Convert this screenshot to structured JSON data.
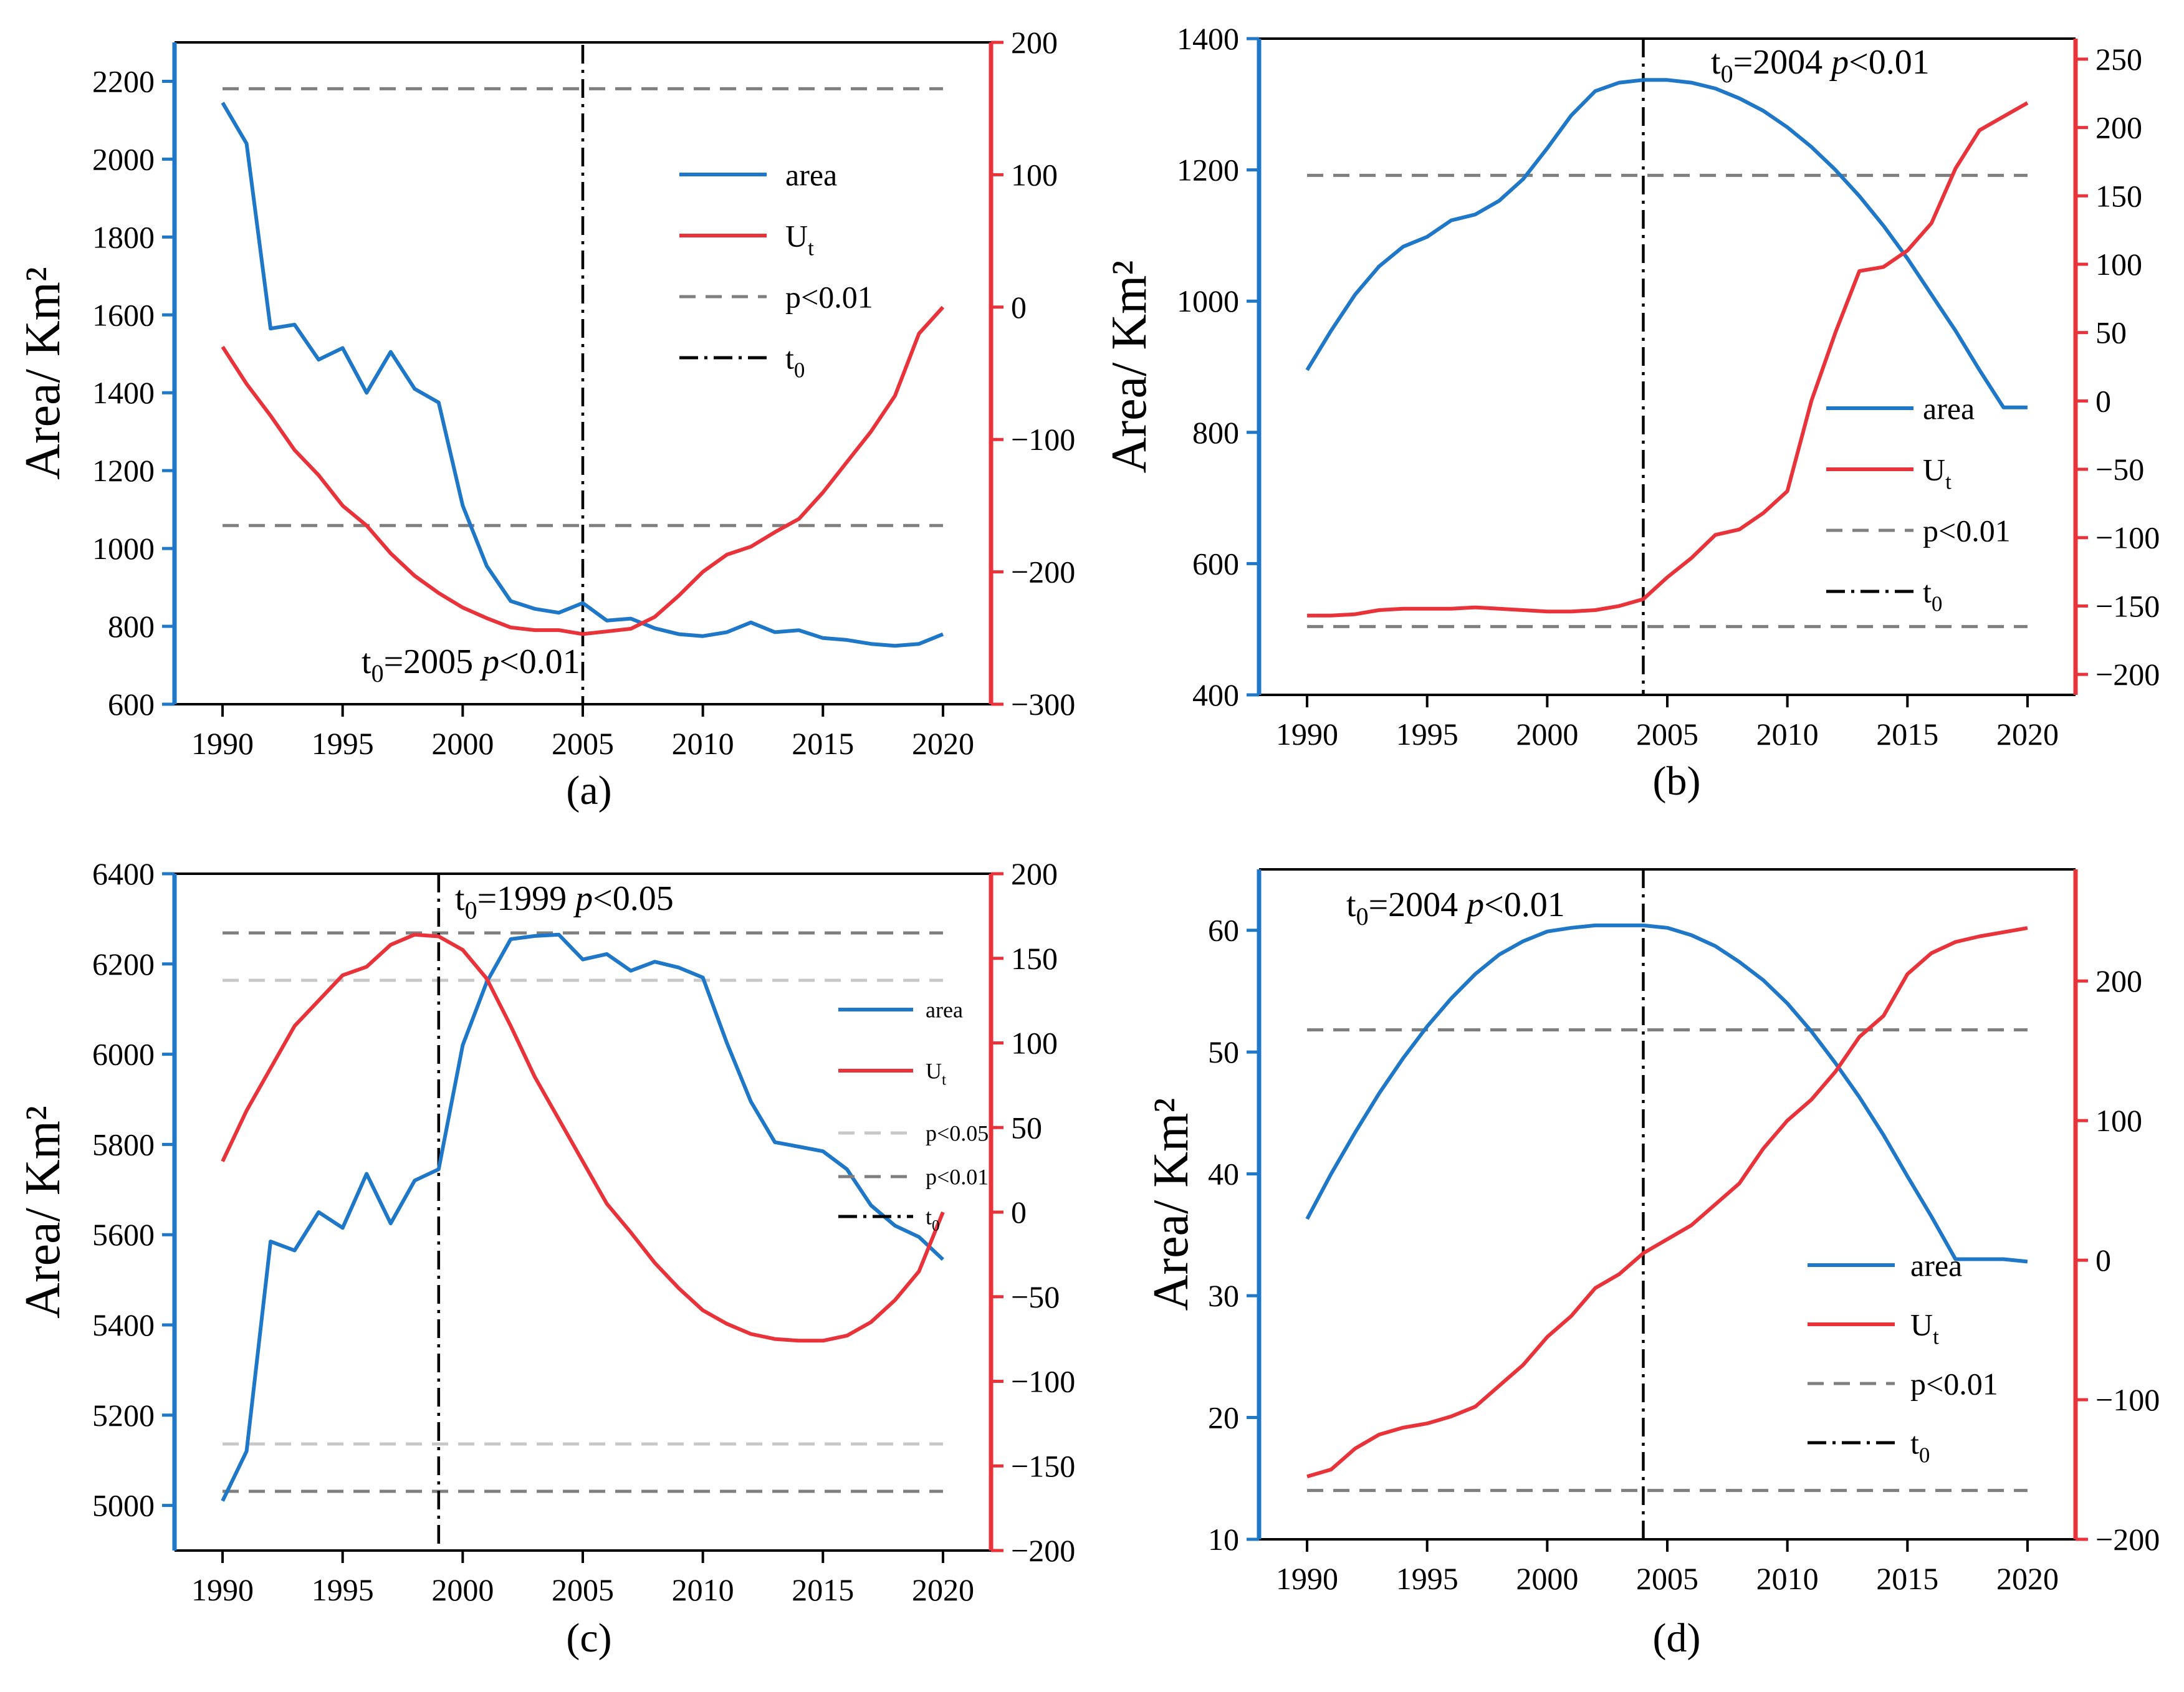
{
  "figure": {
    "colors": {
      "area": "#1f77c8",
      "ut": "#e8333a",
      "p01": "#7f7f7f",
      "p05": "#c8c8c8",
      "t0": "#000000",
      "axisLeft": "#1f77c8",
      "axisRight": "#e8333a"
    }
  },
  "chart_data": [
    {
      "id": "a",
      "type": "line",
      "panel_label": "(a)",
      "ylabel": "Area/ Km²",
      "x": [
        1990,
        1991,
        1992,
        1993,
        1994,
        1995,
        1996,
        1997,
        1998,
        1999,
        2000,
        2001,
        2002,
        2003,
        2004,
        2005,
        2006,
        2007,
        2008,
        2009,
        2010,
        2011,
        2012,
        2013,
        2014,
        2015,
        2016,
        2017,
        2018,
        2019,
        2020
      ],
      "xlim": [
        1988,
        2022
      ],
      "xticks": [
        1990,
        1995,
        2000,
        2005,
        2010,
        2015,
        2020
      ],
      "ylim_left": [
        600,
        2300
      ],
      "yticks_left": [
        600,
        800,
        1000,
        1200,
        1400,
        1600,
        1800,
        2000,
        2200
      ],
      "ylim_right": [
        -300,
        200
      ],
      "yticks_right": [
        -300,
        -200,
        -100,
        0,
        100,
        200
      ],
      "series": [
        {
          "name": "area",
          "axis": "left",
          "values": [
            2145,
            2040,
            1565,
            1575,
            1485,
            1515,
            1400,
            1505,
            1410,
            1375,
            1110,
            955,
            865,
            845,
            835,
            860,
            815,
            820,
            795,
            780,
            775,
            785,
            810,
            785,
            790,
            770,
            765,
            755,
            750,
            755,
            780
          ]
        },
        {
          "name": "Ut",
          "axis": "right",
          "values": [
            -30,
            -58,
            -82,
            -108,
            -127,
            -150,
            -165,
            -186,
            -203,
            -216,
            -227,
            -235,
            -242,
            -244,
            -244,
            -247,
            -245,
            -243,
            -234,
            -218,
            -200,
            -187,
            -181,
            -170,
            -160,
            -140,
            -117,
            -94,
            -67,
            -20,
            0
          ]
        }
      ],
      "thresholds": [
        {
          "name": "p<0.01",
          "axis": "right",
          "value": 165,
          "style": "p01"
        },
        {
          "name": "p<0.01",
          "axis": "right",
          "value": -165,
          "style": "p01"
        }
      ],
      "t0": 2005,
      "annotation": {
        "prefix": "t",
        "sub": "0",
        "text": "=2005 ",
        "p": "p",
        "rest": "<0.01"
      },
      "legend": [
        "area",
        "Ut",
        "p<0.01",
        "t0"
      ],
      "legend_position": "top-right"
    },
    {
      "id": "b",
      "type": "line",
      "panel_label": "(b)",
      "ylabel": "Area/ Km²",
      "x": [
        1990,
        1991,
        1992,
        1993,
        1994,
        1995,
        1996,
        1997,
        1998,
        1999,
        2000,
        2001,
        2002,
        2003,
        2004,
        2005,
        2006,
        2007,
        2008,
        2009,
        2010,
        2011,
        2012,
        2013,
        2014,
        2015,
        2016,
        2017,
        2018,
        2019,
        2020
      ],
      "xlim": [
        1988,
        2022
      ],
      "xticks": [
        1990,
        1995,
        2000,
        2005,
        2010,
        2015,
        2020
      ],
      "ylim_left": [
        400,
        1400
      ],
      "yticks_left": [
        400,
        600,
        800,
        1000,
        1200,
        1400
      ],
      "ylim_right": [
        -215,
        265
      ],
      "yticks_right": [
        -200,
        -150,
        -100,
        -50,
        0,
        50,
        100,
        150,
        200,
        250
      ],
      "series": [
        {
          "name": "area",
          "axis": "left",
          "values": [
            895,
            955,
            1010,
            1053,
            1083,
            1098,
            1123,
            1132,
            1153,
            1186,
            1233,
            1283,
            1320,
            1333,
            1337,
            1337,
            1333,
            1324,
            1309,
            1290,
            1265,
            1235,
            1200,
            1160,
            1115,
            1065,
            1010,
            955,
            895,
            838,
            838
          ]
        },
        {
          "name": "Ut",
          "axis": "right",
          "values": [
            -157,
            -157,
            -156,
            -153,
            -152,
            -152,
            -152,
            -151,
            -152,
            -153,
            -154,
            -154,
            -153,
            -150,
            -145,
            -129,
            -115,
            -98,
            -94,
            -82,
            -66,
            0,
            50,
            95,
            98,
            110,
            130,
            170,
            198,
            208,
            218
          ]
        }
      ],
      "thresholds": [
        {
          "name": "p<0.01",
          "axis": "right",
          "value": 165,
          "style": "p01"
        },
        {
          "name": "p<0.01",
          "axis": "right",
          "value": -165,
          "style": "p01"
        }
      ],
      "t0": 2004,
      "annotation": {
        "prefix": "t",
        "sub": "0",
        "text": "=2004 ",
        "p": "p",
        "rest": "<0.01"
      },
      "legend": [
        "area",
        "Ut",
        "p<0.01",
        "t0"
      ],
      "legend_position": "center-right"
    },
    {
      "id": "c",
      "type": "line",
      "panel_label": "(c)",
      "ylabel": "Area/ Km²",
      "x": [
        1990,
        1991,
        1992,
        1993,
        1994,
        1995,
        1996,
        1997,
        1998,
        1999,
        2000,
        2001,
        2002,
        2003,
        2004,
        2005,
        2006,
        2007,
        2008,
        2009,
        2010,
        2011,
        2012,
        2013,
        2014,
        2015,
        2016,
        2017,
        2018,
        2019,
        2020
      ],
      "xlim": [
        1988,
        2022
      ],
      "xticks": [
        1990,
        1995,
        2000,
        2005,
        2010,
        2015,
        2020
      ],
      "ylim_left": [
        4900,
        6400
      ],
      "yticks_left": [
        5000,
        5200,
        5400,
        5600,
        5800,
        6000,
        6200,
        6400
      ],
      "ylim_right": [
        -200,
        200
      ],
      "yticks_right": [
        -200,
        -150,
        -100,
        -50,
        0,
        50,
        100,
        150,
        200
      ],
      "series": [
        {
          "name": "area",
          "axis": "left",
          "values": [
            5010,
            5120,
            5585,
            5565,
            5650,
            5615,
            5735,
            5625,
            5720,
            5745,
            6020,
            6160,
            6255,
            6262,
            6265,
            6210,
            6222,
            6185,
            6205,
            6192,
            6170,
            6025,
            5895,
            5805,
            5795,
            5785,
            5745,
            5665,
            5620,
            5595,
            5545
          ]
        },
        {
          "name": "Ut",
          "axis": "right",
          "values": [
            30,
            60,
            85,
            110,
            125,
            140,
            145,
            158,
            164,
            163,
            155,
            138,
            110,
            80,
            55,
            30,
            5,
            -12,
            -30,
            -45,
            -58,
            -66,
            -72,
            -75,
            -76,
            -76,
            -73,
            -65,
            -52,
            -35,
            0
          ]
        }
      ],
      "thresholds": [
        {
          "name": "p<0.05",
          "axis": "right",
          "value": 137,
          "style": "p05"
        },
        {
          "name": "p<0.05",
          "axis": "right",
          "value": -137,
          "style": "p05"
        },
        {
          "name": "p<0.01",
          "axis": "right",
          "value": 165,
          "style": "p01"
        },
        {
          "name": "p<0.01",
          "axis": "right",
          "value": -165,
          "style": "p01"
        }
      ],
      "t0": 1999,
      "annotation": {
        "prefix": "t",
        "sub": "0",
        "text": "=1999 ",
        "p": "p",
        "rest": "<0.05"
      },
      "legend": [
        "area",
        "Ut",
        "p<0.05",
        "p<0.01",
        "t0"
      ],
      "legend_position": "right"
    },
    {
      "id": "d",
      "type": "line",
      "panel_label": "(d)",
      "ylabel": "Area/ Km²",
      "x": [
        1990,
        1991,
        1992,
        1993,
        1994,
        1995,
        1996,
        1997,
        1998,
        1999,
        2000,
        2001,
        2002,
        2003,
        2004,
        2005,
        2006,
        2007,
        2008,
        2009,
        2010,
        2011,
        2012,
        2013,
        2014,
        2015,
        2016,
        2017,
        2018,
        2019,
        2020
      ],
      "xlim": [
        1988,
        2022
      ],
      "xticks": [
        1990,
        1995,
        2000,
        2005,
        2010,
        2015,
        2020
      ],
      "ylim_left": [
        10,
        65
      ],
      "yticks_left": [
        10,
        20,
        30,
        40,
        50,
        60
      ],
      "ylim_right": [
        -200,
        280
      ],
      "yticks_right": [
        -200,
        -100,
        0,
        100,
        200
      ],
      "series": [
        {
          "name": "area",
          "axis": "left",
          "values": [
            36.3,
            40.0,
            43.4,
            46.6,
            49.5,
            52.1,
            54.4,
            56.4,
            58.0,
            59.1,
            59.9,
            60.2,
            60.4,
            60.4,
            60.4,
            60.2,
            59.6,
            58.7,
            57.4,
            55.9,
            54.0,
            51.7,
            49.1,
            46.3,
            43.2,
            39.8,
            36.5,
            33.0,
            33.0,
            33.0,
            32.8
          ]
        },
        {
          "name": "Ut",
          "axis": "right",
          "values": [
            -155,
            -150,
            -135,
            -125,
            -120,
            -117,
            -112,
            -105,
            -90,
            -75,
            -55,
            -40,
            -20,
            -10,
            5,
            15,
            25,
            40,
            55,
            80,
            100,
            115,
            135,
            160,
            175,
            205,
            220,
            228,
            232,
            235,
            238
          ]
        }
      ],
      "thresholds": [
        {
          "name": "p<0.01",
          "axis": "right",
          "value": 165,
          "style": "p01"
        },
        {
          "name": "p<0.01",
          "axis": "right",
          "value": -165,
          "style": "p01"
        }
      ],
      "t0": 2004,
      "annotation": {
        "prefix": "t",
        "sub": "0",
        "text": "=2004 ",
        "p": "p",
        "rest": "<0.01"
      },
      "legend": [
        "area",
        "Ut",
        "p<0.01",
        "t0"
      ],
      "legend_position": "bottom-right"
    }
  ]
}
